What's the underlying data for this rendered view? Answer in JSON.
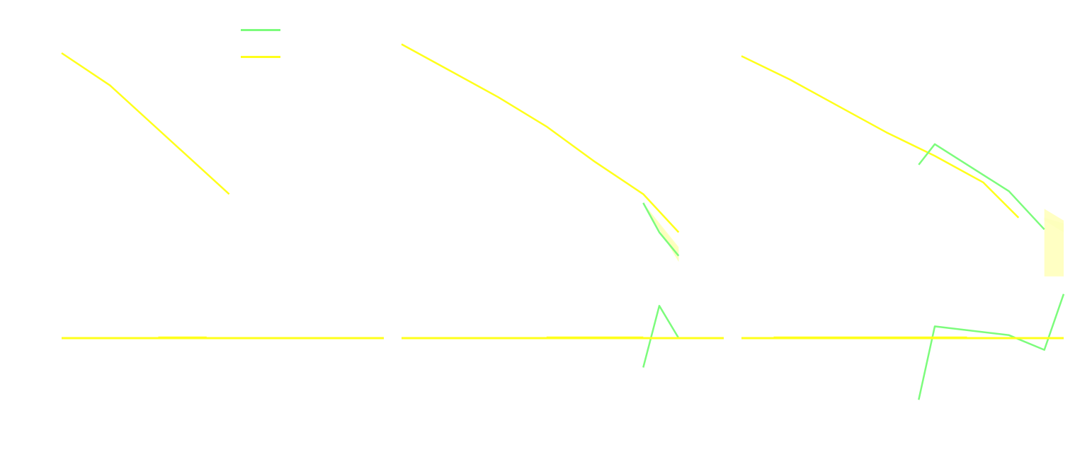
{
  "colors": {
    "green": "#7cfc7c",
    "yellow": "#ffff1a",
    "band_green": "#eaffc8",
    "band_yellow": "#ffffb8",
    "background": "#ffffff"
  },
  "legend": {
    "placement": "top-left",
    "entries": [
      {
        "label": "",
        "color": "#7cfc7c"
      },
      {
        "label": "",
        "color": "#ffff1a"
      }
    ]
  },
  "chart_data": [
    {
      "type": "line",
      "title": "",
      "xlabel": "",
      "ylabel": "",
      "xlim": [
        0,
        10
      ],
      "ylim": [
        -2.5,
        10
      ],
      "grid": false,
      "series": [
        {
          "color": "yellow",
          "x": [
            0,
            1.5,
            3,
            5.2
          ],
          "y": [
            9.7,
            8.6,
            7.1,
            4.9
          ]
        },
        {
          "color": "yellow",
          "x": [
            0,
            10
          ],
          "y": [
            0,
            0
          ]
        },
        {
          "color": "yellow",
          "x": [
            3,
            4.5
          ],
          "y": [
            0.02,
            0.02
          ]
        }
      ],
      "bands": []
    },
    {
      "type": "line",
      "title": "",
      "xlabel": "",
      "ylabel": "",
      "xlim": [
        0,
        10
      ],
      "ylim": [
        -2.5,
        10
      ],
      "grid": false,
      "series": [
        {
          "color": "yellow",
          "x": [
            0,
            1.5,
            3,
            4.5,
            6,
            7.5,
            8.6
          ],
          "y": [
            10.0,
            9.1,
            8.2,
            7.2,
            6.0,
            4.9,
            3.6
          ]
        },
        {
          "color": "green",
          "x": [
            7.5,
            8,
            8.6
          ],
          "y": [
            4.6,
            3.6,
            2.8
          ]
        },
        {
          "color": "green",
          "x": [
            7.5,
            8,
            8.6
          ],
          "y": [
            -1.0,
            1.1,
            0
          ]
        },
        {
          "color": "yellow",
          "x": [
            0,
            10
          ],
          "y": [
            0,
            0
          ]
        },
        {
          "color": "yellow",
          "x": [
            4.5,
            7.5
          ],
          "y": [
            0.02,
            0.02
          ]
        }
      ],
      "bands": [
        {
          "color": "band_green",
          "x": [
            7.5,
            8.6
          ],
          "y_lower": [
            4.6,
            2.6
          ],
          "y_upper": [
            4.6,
            3.0
          ]
        },
        {
          "color": "band_yellow",
          "x": [
            7.5,
            8.6
          ],
          "y_lower": [
            4.6,
            2.6
          ],
          "y_upper": [
            4.6,
            3.1
          ]
        }
      ]
    },
    {
      "type": "line",
      "title": "",
      "xlabel": "",
      "ylabel": "",
      "xlim": [
        0,
        10
      ],
      "ylim": [
        -2.5,
        10
      ],
      "grid": false,
      "series": [
        {
          "color": "yellow",
          "x": [
            0,
            1.5,
            3,
            4.5,
            6,
            7.5,
            8.6
          ],
          "y": [
            9.6,
            8.8,
            7.9,
            7.0,
            6.2,
            5.3,
            4.1
          ]
        },
        {
          "color": "green",
          "x": [
            5.5,
            6,
            8.3,
            9.4
          ],
          "y": [
            5.9,
            6.6,
            5.0,
            3.7
          ]
        },
        {
          "color": "green",
          "x": [
            5.5,
            6,
            8.3,
            9.4,
            10
          ],
          "y": [
            -2.1,
            0.4,
            0.1,
            -0.4,
            1.5
          ]
        },
        {
          "color": "yellow",
          "x": [
            0,
            10
          ],
          "y": [
            0,
            0
          ]
        },
        {
          "color": "yellow",
          "x": [
            1,
            7
          ],
          "y": [
            0.02,
            0.02
          ]
        }
      ],
      "bands": [
        {
          "color": "band_green",
          "x": [
            9.4,
            10
          ],
          "y_lower": [
            4.0,
            3.6
          ],
          "y_upper": [
            4.1,
            3.9
          ]
        },
        {
          "color": "band_yellow",
          "x": [
            9.4,
            10
          ],
          "y_lower": [
            2.1,
            2.1
          ],
          "y_upper": [
            4.4,
            4.0
          ]
        }
      ]
    }
  ]
}
